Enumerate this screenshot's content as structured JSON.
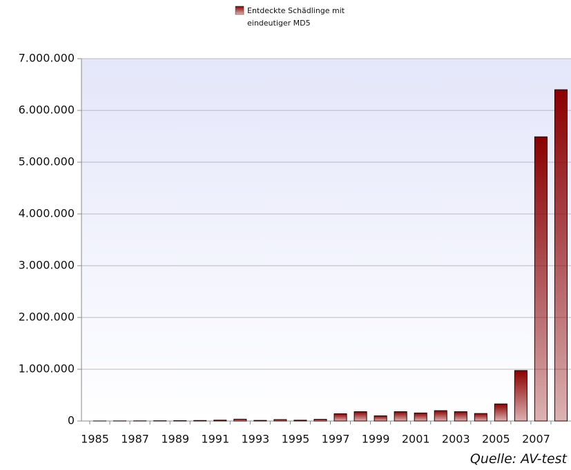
{
  "chart_data": {
    "type": "bar",
    "categories": [
      "1985",
      null,
      "1987",
      null,
      "1989",
      null,
      "1991",
      null,
      "1993",
      null,
      "1995",
      null,
      "1997",
      null,
      "1999",
      null,
      "2001",
      null,
      "2003",
      null,
      "2005",
      null,
      "2007",
      null
    ],
    "series": [
      {
        "name": "Entdeckte Schädlinge mit eindeutiger MD5",
        "color": "#8b0000",
        "values": [
          1000,
          2000,
          3000,
          5000,
          7000,
          10000,
          17000,
          35000,
          12000,
          28000,
          16000,
          33000,
          140000,
          180000,
          100000,
          180000,
          155000,
          200000,
          180000,
          145000,
          330000,
          975000,
          5490000,
          6400000
        ]
      }
    ],
    "ylim": [
      0,
      7000000
    ],
    "yticks": [
      0,
      {
        "value": 1000000,
        "label": "1.000.000"
      },
      {
        "value": 2000000,
        "label": "2.000.000"
      },
      {
        "value": 3000000,
        "label": "3.000.000"
      },
      {
        "value": 4000000,
        "label": "4.000.000"
      },
      {
        "value": 5000000,
        "label": "5.000.000"
      },
      {
        "value": 6000000,
        "label": "6.000.000"
      },
      {
        "value": 7000000,
        "label": "7.000.000"
      }
    ],
    "grid": true,
    "source": "Quelle: AV-test"
  }
}
